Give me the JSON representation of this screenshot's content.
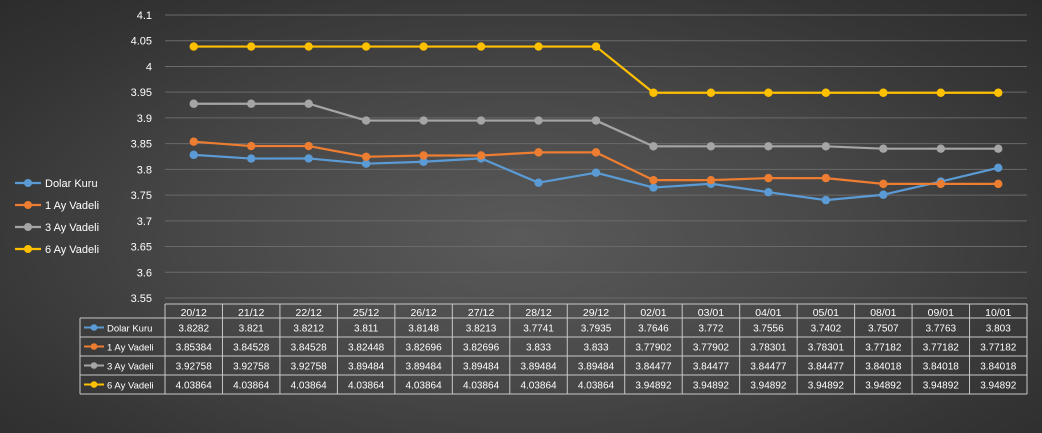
{
  "chart_data": {
    "type": "line",
    "title": "",
    "xlabel": "",
    "ylabel": "",
    "ylim": [
      3.55,
      4.1
    ],
    "yticks": [
      "3.55",
      "3.6",
      "3.65",
      "3.7",
      "3.75",
      "3.8",
      "3.85",
      "3.9",
      "3.95",
      "4",
      "4.05",
      "4.1"
    ],
    "grid": true,
    "legend_position": "left",
    "data_table": true,
    "categories": [
      "20/12",
      "21/12",
      "22/12",
      "25/12",
      "26/12",
      "27/12",
      "28/12",
      "29/12",
      "02/01",
      "03/01",
      "04/01",
      "05/01",
      "08/01",
      "09/01",
      "10/01"
    ],
    "series": [
      {
        "name": "Dolar Kuru",
        "color": "#5b9bd5",
        "values": [
          "3.8282",
          "3.821",
          "3.8212",
          "3.811",
          "3.8148",
          "3.8213",
          "3.7741",
          "3.7935",
          "3.7646",
          "3.772",
          "3.7556",
          "3.7402",
          "3.7507",
          "3.7763",
          "3.803"
        ]
      },
      {
        "name": "1 Ay Vadeli",
        "color": "#ed7d31",
        "values": [
          "3.85384",
          "3.84528",
          "3.84528",
          "3.82448",
          "3.82696",
          "3.82696",
          "3.833",
          "3.833",
          "3.77902",
          "3.77902",
          "3.78301",
          "3.78301",
          "3.77182",
          "3.77182",
          "3.77182"
        ]
      },
      {
        "name": "3 Ay Vadeli",
        "color": "#a5a5a5",
        "values": [
          "3.92758",
          "3.92758",
          "3.92758",
          "3.89484",
          "3.89484",
          "3.89484",
          "3.89484",
          "3.89484",
          "3.84477",
          "3.84477",
          "3.84477",
          "3.84477",
          "3.84018",
          "3.84018",
          "3.84018"
        ]
      },
      {
        "name": "6 Ay Vadeli",
        "color": "#ffc000",
        "values": [
          "4.03864",
          "4.03864",
          "4.03864",
          "4.03864",
          "4.03864",
          "4.03864",
          "4.03864",
          "4.03864",
          "3.94892",
          "3.94892",
          "3.94892",
          "3.94892",
          "3.94892",
          "3.94892",
          "3.94892"
        ]
      }
    ]
  }
}
